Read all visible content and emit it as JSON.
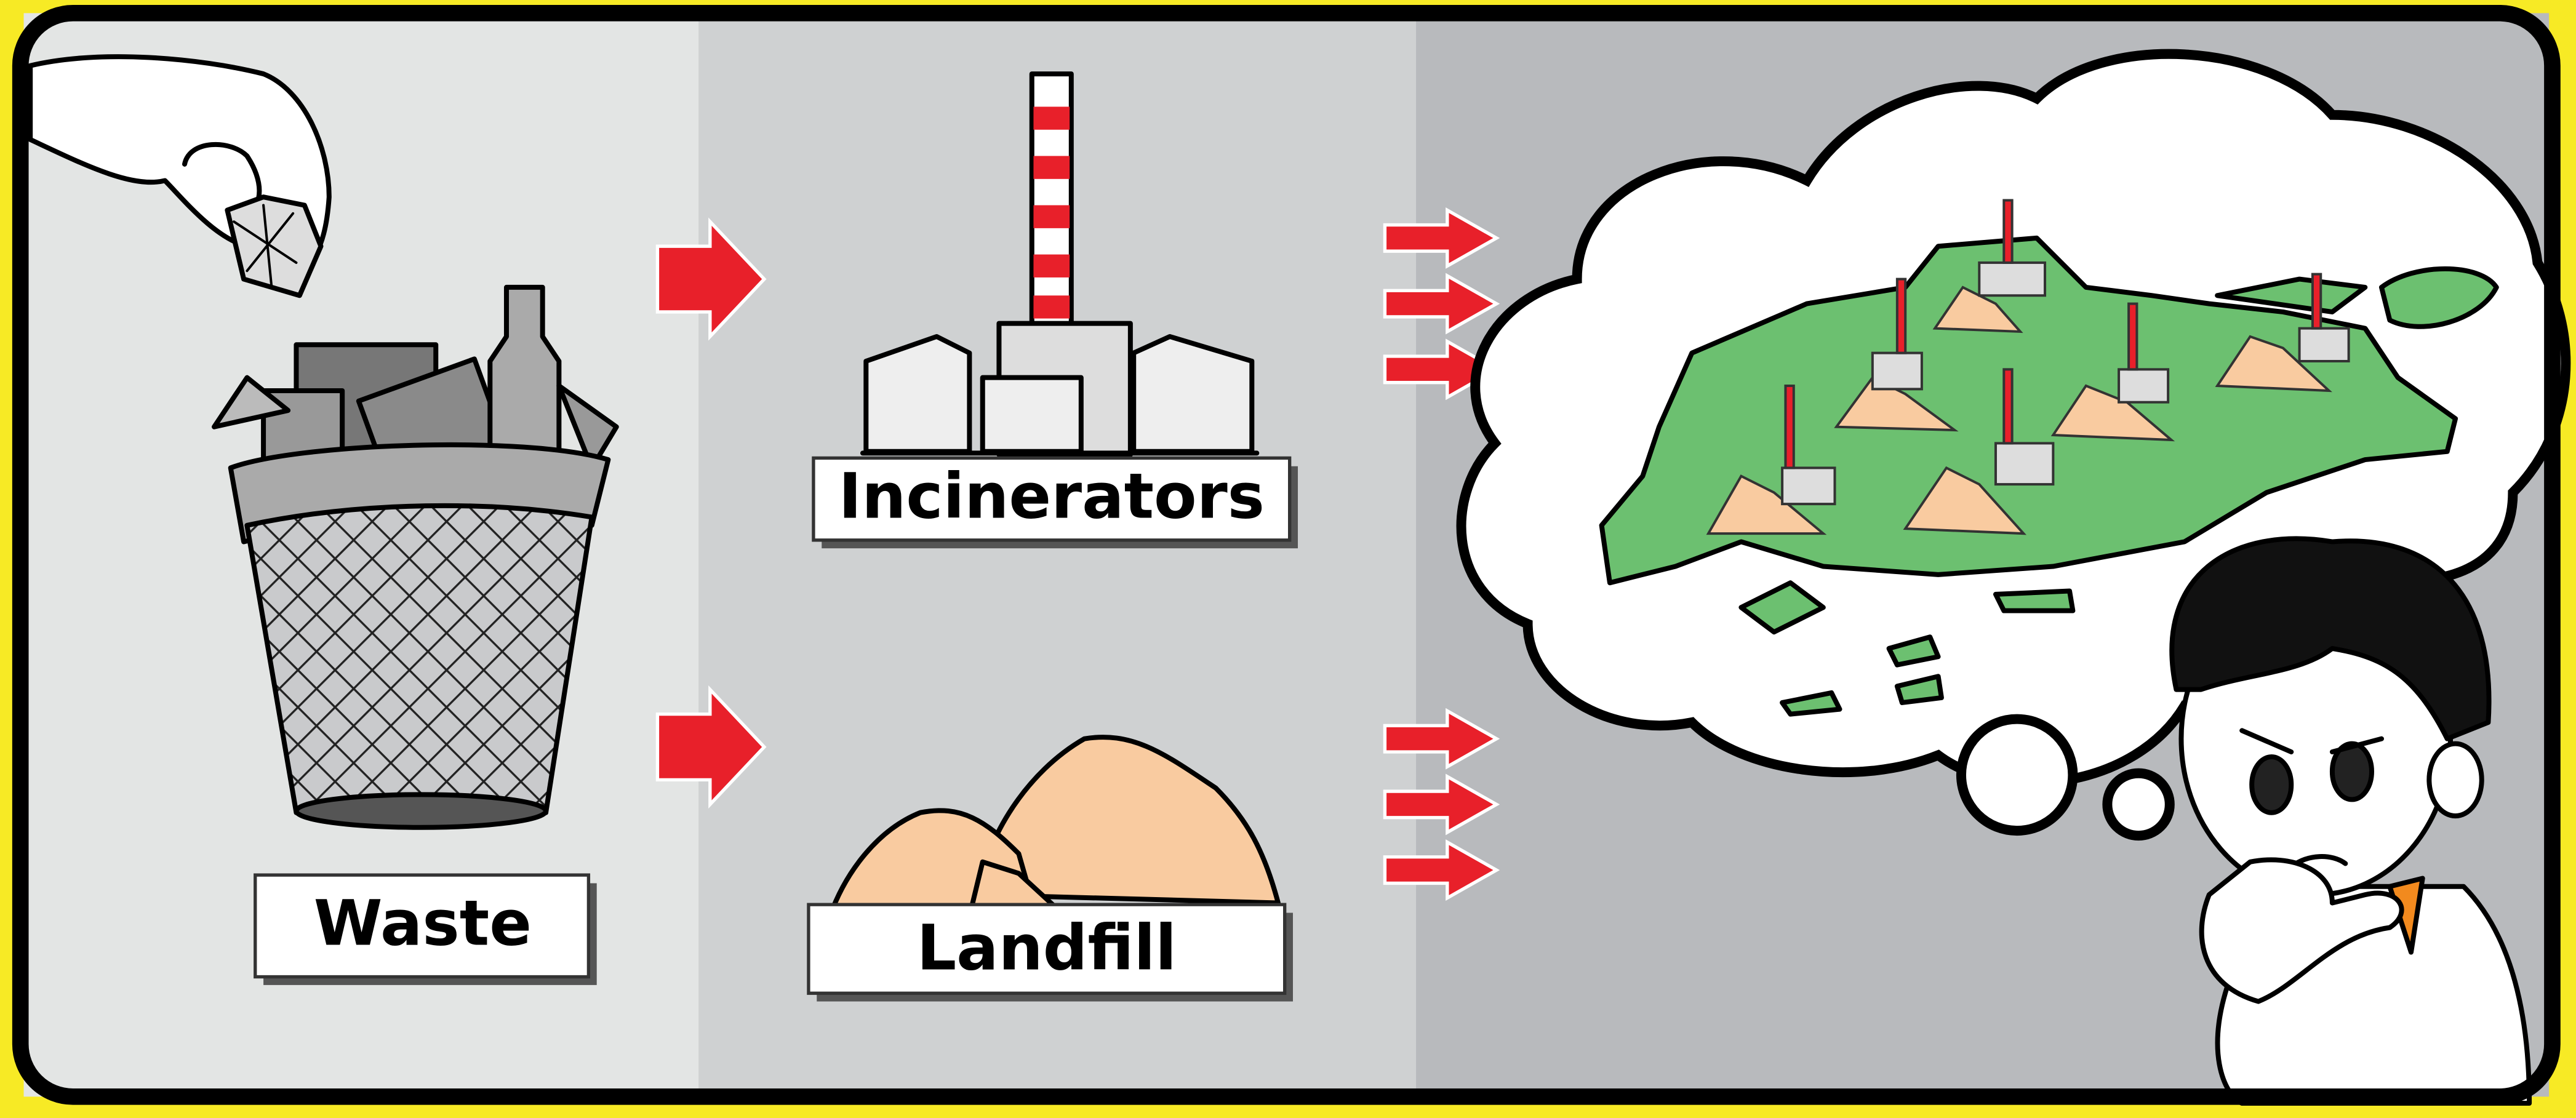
{
  "nodes": [
    {
      "label": "Waste"
    },
    {
      "label": "Incinerators"
    },
    {
      "label": "Landfill"
    }
  ]
}
